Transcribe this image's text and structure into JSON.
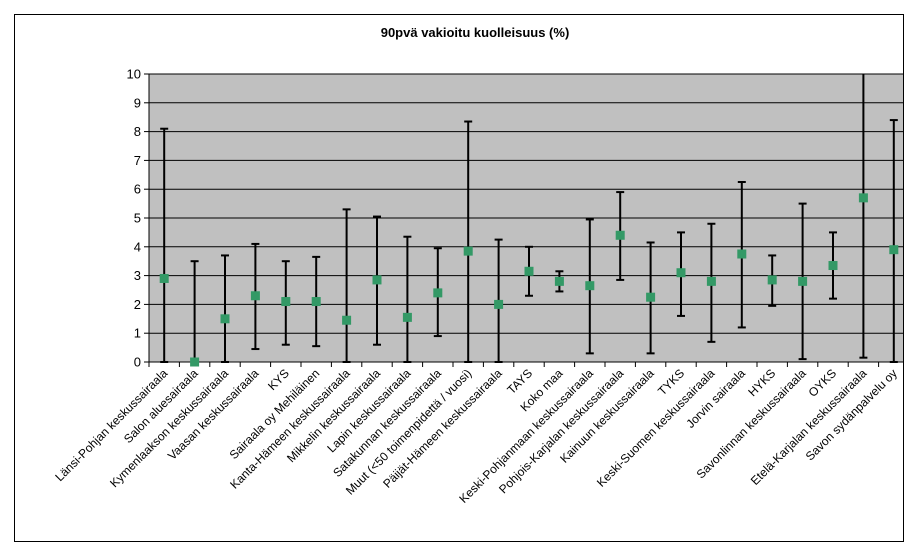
{
  "chart_data": {
    "type": "scatter",
    "title": "90pvä vakioitu kuolleisuus (%)",
    "xlabel": "",
    "ylabel": "",
    "ylim": [
      0,
      10
    ],
    "yticks": [
      0,
      1,
      2,
      3,
      4,
      5,
      6,
      7,
      8,
      9,
      10
    ],
    "grid": true,
    "legend": "none",
    "colors": {
      "plot_bg": "#c0c0c0",
      "marker": "#339966",
      "error_bar": "#000000",
      "grid": "#000000"
    },
    "categories": [
      "Länsi-Pohjan keskussairaala",
      "Salon aluesairaala",
      "Kymenlaakson keskussairaala",
      "Vaasan keskussairaala",
      "KYS",
      "Sairaala oy Mehiläinen",
      "Kanta-Hämeen keskussairaala",
      "Mikkelin keskussairaala",
      "Lapin keskussairaala",
      "Satakunnan keskussairaala",
      "Muut (<50 toimenpidettä / vuosi)",
      "Päijät-Hämeen keskussairaala",
      "TAYS",
      "Koko maa",
      "Keski-Pohjanmaan keskussairaala",
      "Pohjois-Karjalan keskussairaala",
      "Kainuun keskussairaala",
      "TYKS",
      "Keski-Suomen keskussairaala",
      "Jorvin sairaala",
      "HYKS",
      "Savonlinnan keskussairaala",
      "OYKS",
      "Etelä-Karjalan keskussairaala",
      "Savon sydänpalvelu oy"
    ],
    "values": [
      2.9,
      0.0,
      1.5,
      2.3,
      2.1,
      2.1,
      1.45,
      2.85,
      1.55,
      2.4,
      3.85,
      2.0,
      3.15,
      2.8,
      2.65,
      4.4,
      2.25,
      3.1,
      2.8,
      3.75,
      2.85,
      2.8,
      3.35,
      5.7,
      3.9
    ],
    "lower": [
      0.0,
      0.0,
      0.0,
      0.45,
      0.6,
      0.55,
      0.0,
      0.6,
      0.0,
      0.9,
      0.0,
      0.0,
      2.3,
      2.45,
      0.3,
      2.85,
      0.3,
      1.6,
      0.7,
      1.2,
      1.95,
      0.1,
      2.2,
      0.15,
      0.0
    ],
    "upper": [
      8.1,
      3.5,
      3.7,
      4.1,
      3.5,
      3.65,
      5.3,
      5.05,
      4.35,
      3.95,
      8.35,
      4.25,
      4.0,
      3.15,
      4.95,
      5.9,
      4.15,
      4.5,
      4.8,
      6.25,
      3.7,
      5.5,
      4.5,
      10.0,
      8.4
    ]
  }
}
